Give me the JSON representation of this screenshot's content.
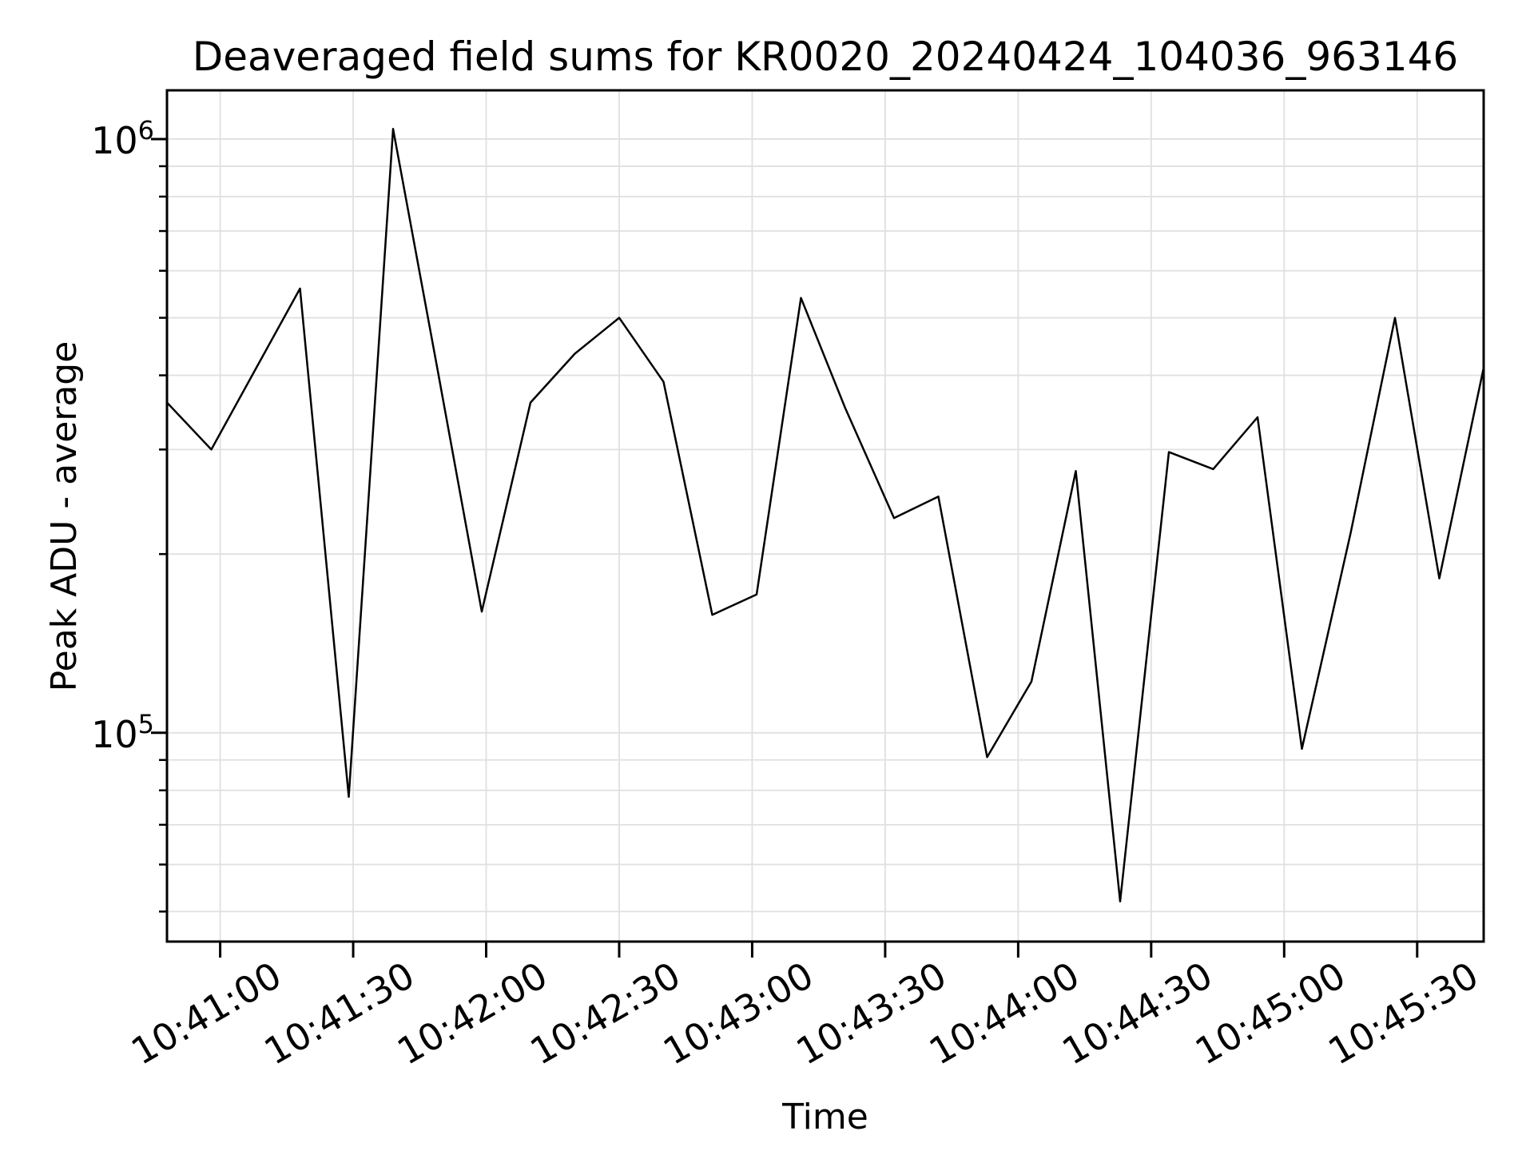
{
  "chart_data": {
    "type": "line",
    "title": "Deaveraged field sums for KR0020_20240424_104036_963146",
    "xlabel": "Time",
    "ylabel": "Peak ADU - average",
    "yscale": "log",
    "grid": true,
    "legend_position": "none",
    "colors": {
      "line": "#000000",
      "grid": "#e0e0e0",
      "axis": "#000000",
      "background": "#ffffff"
    },
    "ylim": [
      44500,
      1208000
    ],
    "y_major_ticks": [
      {
        "value": 100000,
        "label_base": "10",
        "label_exp": "5"
      },
      {
        "value": 1000000,
        "label_base": "10",
        "label_exp": "6"
      }
    ],
    "y_minor_ticks": [
      900000,
      800000,
      700000,
      600000,
      500000,
      400000,
      300000,
      200000,
      90000,
      80000,
      70000,
      60000,
      50000
    ],
    "x_ticks": [
      "10:41:00",
      "10:41:30",
      "10:42:00",
      "10:42:30",
      "10:43:00",
      "10:43:30",
      "10:44:00",
      "10:44:30",
      "10:45:00",
      "10:45:30"
    ],
    "x_tick_rotation_deg": 30,
    "series": [
      {
        "name": "Peak ADU - average",
        "x": [
          "10:40:48",
          "10:40:58",
          "10:41:08",
          "10:41:18",
          "10:41:29",
          "10:41:39",
          "10:41:49",
          "10:41:59",
          "10:42:10",
          "10:42:20",
          "10:42:30",
          "10:42:40",
          "10:42:51",
          "10:43:01",
          "10:43:11",
          "10:43:21",
          "10:43:32",
          "10:43:42",
          "10:43:53",
          "10:44:03",
          "10:44:13",
          "10:44:23",
          "10:44:34",
          "10:44:44",
          "10:44:54",
          "10:45:04",
          "10:45:15",
          "10:45:25",
          "10:45:35",
          "10:45:45"
        ],
        "y": [
          360000,
          300000,
          410000,
          560000,
          78000,
          1040000,
          410000,
          160000,
          360000,
          435000,
          500000,
          390000,
          158000,
          171000,
          540000,
          352000,
          230000,
          250000,
          91000,
          122000,
          276000,
          52000,
          297000,
          278000,
          340000,
          94000,
          217000,
          500000,
          182000,
          412000
        ]
      }
    ]
  }
}
